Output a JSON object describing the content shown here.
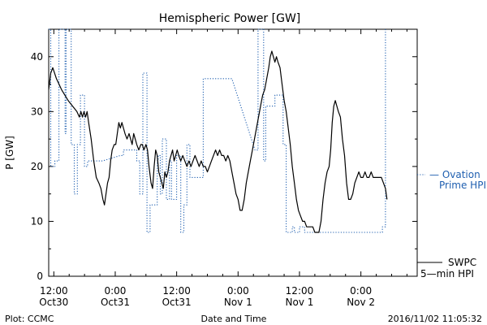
{
  "chart_data": {
    "type": "line",
    "title": "Hemispheric Power [GW]",
    "xlabel": "Date and Time",
    "ylabel": "P [GW]",
    "ylim": [
      0,
      45
    ],
    "yticks": [
      0,
      10,
      20,
      30,
      40
    ],
    "xlim": [
      11,
      83
    ],
    "xticks": [
      {
        "x": 12,
        "line1": "12:00",
        "line2": "Oct30"
      },
      {
        "x": 24,
        "line1": "0:00",
        "line2": "Oct31"
      },
      {
        "x": 36,
        "line1": "12:00",
        "line2": "Oct31"
      },
      {
        "x": 48,
        "line1": "0:00",
        "line2": "Nov 1"
      },
      {
        "x": 60,
        "line1": "12:00",
        "line2": "Nov 1"
      },
      {
        "x": 72,
        "line1": "0:00",
        "line2": "Nov 2"
      }
    ],
    "series": [
      {
        "name": "SWPC 5-min HPI",
        "color": "#000000",
        "style": "solid",
        "points": [
          [
            11.0,
            34
          ],
          [
            11.4,
            37
          ],
          [
            11.8,
            38
          ],
          [
            12.5,
            36
          ],
          [
            13.5,
            34
          ],
          [
            14.8,
            32
          ],
          [
            16.5,
            30
          ],
          [
            17.0,
            29
          ],
          [
            17.3,
            30
          ],
          [
            17.6,
            29
          ],
          [
            17.9,
            30
          ],
          [
            18.2,
            29
          ],
          [
            18.5,
            30
          ],
          [
            18.8,
            28
          ],
          [
            19.3,
            25
          ],
          [
            19.8,
            21
          ],
          [
            20.3,
            18
          ],
          [
            20.8,
            17
          ],
          [
            21.2,
            16
          ],
          [
            21.6,
            14
          ],
          [
            21.9,
            13
          ],
          [
            22.2,
            15
          ],
          [
            22.5,
            17
          ],
          [
            22.8,
            18
          ],
          [
            23.1,
            21
          ],
          [
            23.4,
            23
          ],
          [
            23.8,
            24
          ],
          [
            24.1,
            24
          ],
          [
            24.4,
            26
          ],
          [
            24.7,
            28
          ],
          [
            25.0,
            27
          ],
          [
            25.3,
            28
          ],
          [
            25.6,
            27
          ],
          [
            25.9,
            26
          ],
          [
            26.3,
            25
          ],
          [
            26.7,
            26
          ],
          [
            27.0,
            25
          ],
          [
            27.3,
            24
          ],
          [
            27.6,
            26
          ],
          [
            27.9,
            25
          ],
          [
            28.2,
            24
          ],
          [
            28.6,
            23
          ],
          [
            29.0,
            24
          ],
          [
            29.3,
            24
          ],
          [
            29.6,
            23
          ],
          [
            30.0,
            24
          ],
          [
            30.3,
            23
          ],
          [
            30.6,
            20
          ],
          [
            31.0,
            17
          ],
          [
            31.3,
            16
          ],
          [
            31.6,
            20
          ],
          [
            31.9,
            23
          ],
          [
            32.2,
            22
          ],
          [
            32.5,
            19
          ],
          [
            32.8,
            18
          ],
          [
            33.1,
            17
          ],
          [
            33.4,
            16
          ],
          [
            33.7,
            19
          ],
          [
            34.0,
            18
          ],
          [
            34.3,
            19
          ],
          [
            34.6,
            21
          ],
          [
            34.9,
            22
          ],
          [
            35.2,
            23
          ],
          [
            35.5,
            21
          ],
          [
            35.8,
            22
          ],
          [
            36.1,
            23
          ],
          [
            36.4,
            22
          ],
          [
            36.8,
            21
          ],
          [
            37.2,
            22
          ],
          [
            37.6,
            21
          ],
          [
            38.0,
            20
          ],
          [
            38.4,
            21
          ],
          [
            38.8,
            20
          ],
          [
            39.2,
            21
          ],
          [
            39.6,
            22
          ],
          [
            40.0,
            21
          ],
          [
            40.4,
            20
          ],
          [
            40.8,
            21
          ],
          [
            41.2,
            20
          ],
          [
            41.6,
            20
          ],
          [
            42.0,
            19
          ],
          [
            42.4,
            20
          ],
          [
            42.8,
            21
          ],
          [
            43.2,
            22
          ],
          [
            43.6,
            23
          ],
          [
            44.0,
            22
          ],
          [
            44.4,
            23
          ],
          [
            44.8,
            22
          ],
          [
            45.2,
            22
          ],
          [
            45.6,
            21
          ],
          [
            46.0,
            22
          ],
          [
            46.4,
            21
          ],
          [
            46.8,
            19
          ],
          [
            47.2,
            17
          ],
          [
            47.6,
            15
          ],
          [
            48.0,
            14
          ],
          [
            48.4,
            12
          ],
          [
            48.8,
            12
          ],
          [
            49.2,
            14
          ],
          [
            49.6,
            17
          ],
          [
            50.0,
            19
          ],
          [
            50.4,
            21
          ],
          [
            50.8,
            23
          ],
          [
            51.2,
            25
          ],
          [
            51.6,
            27
          ],
          [
            52.0,
            29
          ],
          [
            52.4,
            31
          ],
          [
            52.8,
            33
          ],
          [
            53.2,
            34
          ],
          [
            53.6,
            36
          ],
          [
            54.0,
            38
          ],
          [
            54.3,
            40
          ],
          [
            54.6,
            41
          ],
          [
            54.9,
            40
          ],
          [
            55.2,
            39
          ],
          [
            55.5,
            40
          ],
          [
            55.8,
            39
          ],
          [
            56.2,
            38
          ],
          [
            56.6,
            35
          ],
          [
            57.0,
            32
          ],
          [
            57.4,
            30
          ],
          [
            57.8,
            27
          ],
          [
            58.2,
            24
          ],
          [
            58.6,
            20
          ],
          [
            59.0,
            17
          ],
          [
            59.4,
            14
          ],
          [
            59.8,
            12
          ],
          [
            60.2,
            11
          ],
          [
            60.6,
            10
          ],
          [
            61.0,
            10
          ],
          [
            61.4,
            9
          ],
          [
            61.8,
            9
          ],
          [
            62.2,
            9
          ],
          [
            62.6,
            9
          ],
          [
            63.0,
            8
          ],
          [
            63.4,
            8
          ],
          [
            63.8,
            8
          ],
          [
            64.2,
            10
          ],
          [
            64.6,
            14
          ],
          [
            65.0,
            17
          ],
          [
            65.4,
            19
          ],
          [
            65.8,
            20
          ],
          [
            66.1,
            23
          ],
          [
            66.4,
            28
          ],
          [
            66.7,
            31
          ],
          [
            67.0,
            32
          ],
          [
            67.3,
            31
          ],
          [
            67.6,
            30
          ],
          [
            68.0,
            29
          ],
          [
            68.4,
            25
          ],
          [
            68.8,
            22
          ],
          [
            69.2,
            17
          ],
          [
            69.6,
            14
          ],
          [
            70.0,
            14
          ],
          [
            70.4,
            15
          ],
          [
            70.8,
            17
          ],
          [
            71.2,
            18
          ],
          [
            71.6,
            19
          ],
          [
            72.0,
            18
          ],
          [
            72.4,
            18
          ],
          [
            72.8,
            19
          ],
          [
            73.2,
            18
          ],
          [
            73.6,
            18
          ],
          [
            74.0,
            19
          ],
          [
            74.4,
            18
          ],
          [
            74.8,
            18
          ],
          [
            75.2,
            18
          ],
          [
            75.6,
            18
          ],
          [
            76.0,
            18
          ],
          [
            76.4,
            17
          ],
          [
            76.8,
            16
          ],
          [
            77.1,
            14
          ]
        ]
      },
      {
        "name": "Ovation Prime HPI",
        "color": "#1f5fb0",
        "style": "dotted",
        "points": [
          [
            11.0,
            45
          ],
          [
            11.4,
            45
          ],
          [
            11.4,
            20
          ],
          [
            12.2,
            20
          ],
          [
            12.2,
            21
          ],
          [
            13.0,
            21
          ],
          [
            13.0,
            45
          ],
          [
            14.2,
            45
          ],
          [
            14.2,
            26
          ],
          [
            14.4,
            26
          ],
          [
            14.4,
            45
          ],
          [
            15.4,
            45
          ],
          [
            15.4,
            24
          ],
          [
            16.0,
            24
          ],
          [
            16.0,
            15
          ],
          [
            16.6,
            15
          ],
          [
            16.6,
            24
          ],
          [
            17.2,
            24
          ],
          [
            17.2,
            33
          ],
          [
            18.0,
            33
          ],
          [
            18.0,
            20
          ],
          [
            18.6,
            20
          ],
          [
            18.6,
            21
          ],
          [
            21.5,
            21
          ],
          [
            25.0,
            22
          ],
          [
            25.6,
            22
          ],
          [
            25.6,
            23
          ],
          [
            28.2,
            23
          ],
          [
            28.2,
            21
          ],
          [
            28.8,
            21
          ],
          [
            28.8,
            15
          ],
          [
            29.4,
            15
          ],
          [
            29.4,
            37
          ],
          [
            30.2,
            37
          ],
          [
            30.2,
            8
          ],
          [
            30.8,
            8
          ],
          [
            30.8,
            13
          ],
          [
            32.2,
            13
          ],
          [
            32.2,
            21
          ],
          [
            32.4,
            21
          ],
          [
            32.4,
            22
          ],
          [
            32.8,
            22
          ],
          [
            32.8,
            15
          ],
          [
            33.2,
            15
          ],
          [
            33.2,
            25
          ],
          [
            34.0,
            25
          ],
          [
            34.0,
            14
          ],
          [
            34.6,
            14
          ],
          [
            34.6,
            21
          ],
          [
            35.0,
            21
          ],
          [
            35.0,
            14
          ],
          [
            36.0,
            14
          ],
          [
            36.0,
            22
          ],
          [
            36.8,
            22
          ],
          [
            36.8,
            8
          ],
          [
            37.4,
            8
          ],
          [
            37.4,
            13
          ],
          [
            38.0,
            13
          ],
          [
            38.0,
            24
          ],
          [
            38.6,
            24
          ],
          [
            38.6,
            18
          ],
          [
            41.2,
            18
          ],
          [
            41.2,
            36
          ],
          [
            46.8,
            36
          ],
          [
            51.3,
            23
          ],
          [
            51.9,
            23
          ],
          [
            51.9,
            45
          ],
          [
            53.0,
            45
          ],
          [
            53.0,
            21
          ],
          [
            53.4,
            21
          ],
          [
            53.4,
            31
          ],
          [
            55.2,
            31
          ],
          [
            55.2,
            33
          ],
          [
            56.8,
            33
          ],
          [
            56.8,
            24
          ],
          [
            57.4,
            24
          ],
          [
            57.4,
            8
          ],
          [
            58.6,
            8
          ],
          [
            58.6,
            9
          ],
          [
            59.0,
            9
          ],
          [
            59.0,
            8
          ],
          [
            60.0,
            8
          ],
          [
            60.0,
            9
          ],
          [
            61.0,
            9
          ],
          [
            61.0,
            8
          ],
          [
            76.2,
            8
          ],
          [
            76.2,
            9
          ],
          [
            76.8,
            9
          ],
          [
            76.8,
            45
          ]
        ]
      }
    ],
    "legend": [
      {
        "label_lines": [
          "— Ovation",
          "Prime HPI"
        ],
        "color": "#1f5fb0",
        "position": "right-middle"
      },
      {
        "label_lines": [
          "SWPC",
          "5—min HPI"
        ],
        "color": "#000000",
        "position": "right-bottom"
      }
    ],
    "grid": false
  },
  "footer": {
    "left": "Plot: CCMC",
    "center": "Date and Time",
    "right": "2016/11/02 11:05:32"
  }
}
